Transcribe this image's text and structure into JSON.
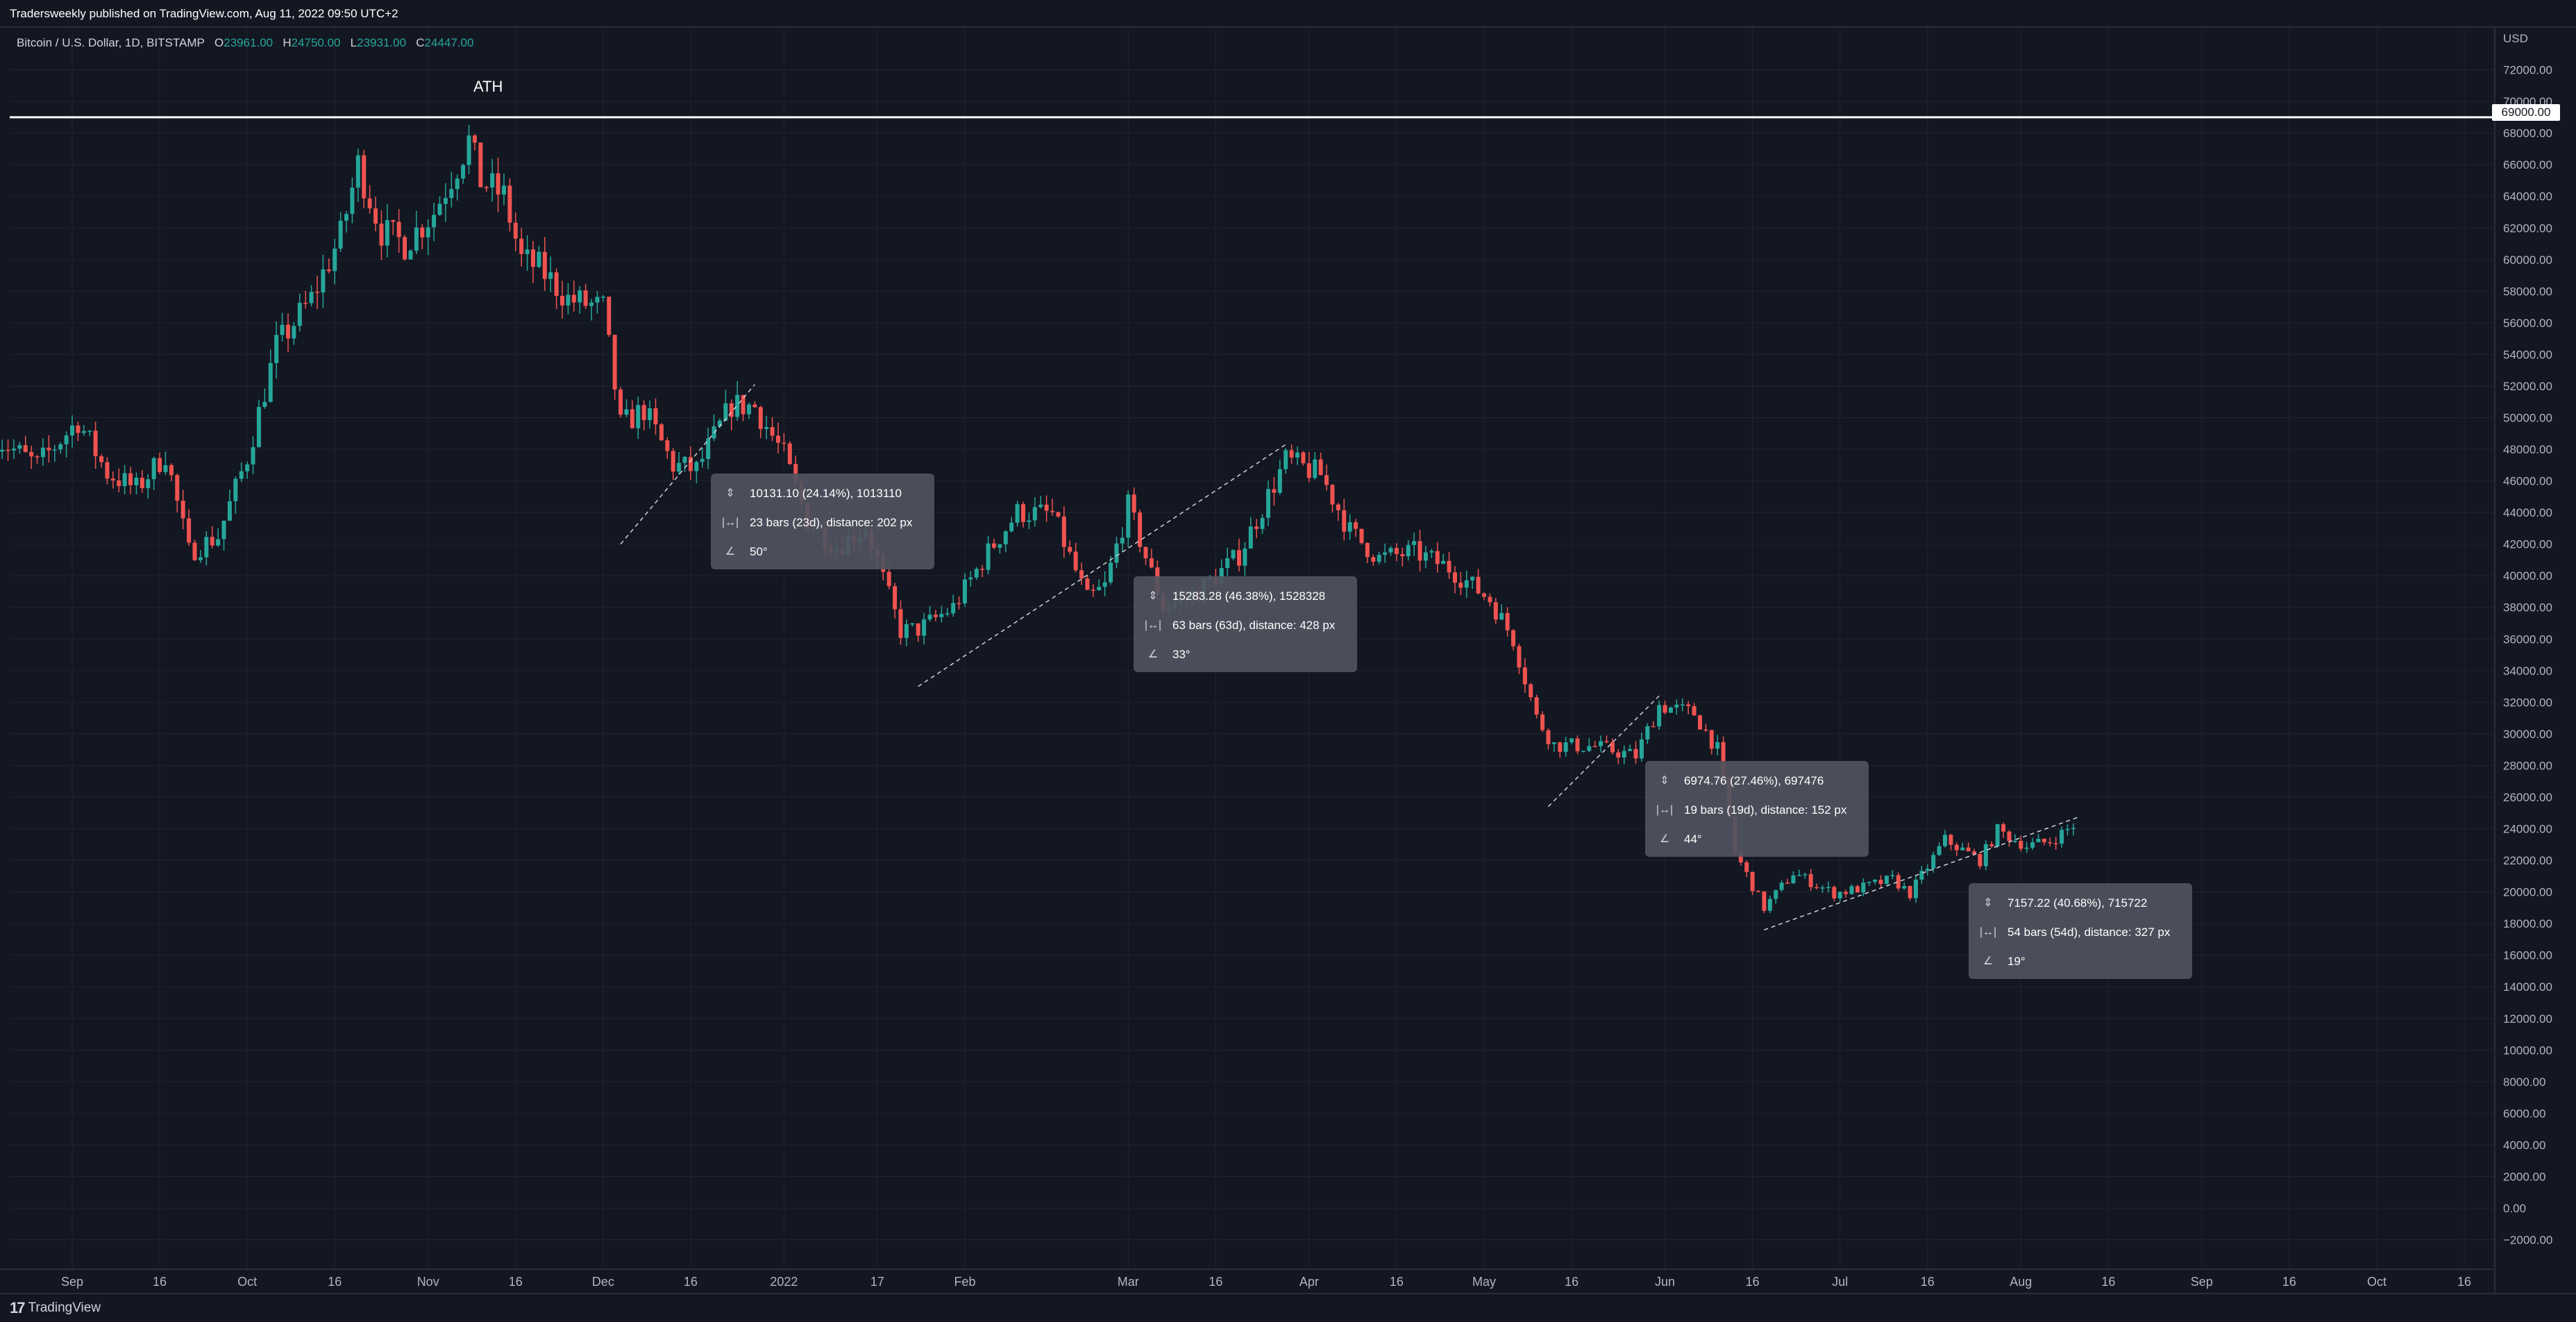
{
  "header": {
    "publisher": "Tradersweekly published on TradingView.com, Aug 11, 2022 09:50 UTC+2"
  },
  "symbol": {
    "name": "Bitcoin / U.S. Dollar, 1D, BITSTAMP",
    "open_label": "O",
    "open": "23961.00",
    "high_label": "H",
    "high": "24750.00",
    "low_label": "L",
    "low": "23931.00",
    "close_label": "C",
    "close": "24447.00"
  },
  "currency": "USD",
  "ath": {
    "label": "ATH",
    "price": "69000.00",
    "value": 69000
  },
  "colors": {
    "up": "#26a69a",
    "down": "#ef5350",
    "background": "#131722",
    "grid": "#1f2430",
    "text": "#b2b5be"
  },
  "price_axis": {
    "ticks": [
      "72000.00",
      "70000.00",
      "68000.00",
      "66000.00",
      "64000.00",
      "62000.00",
      "60000.00",
      "58000.00",
      "56000.00",
      "54000.00",
      "52000.00",
      "50000.00",
      "48000.00",
      "46000.00",
      "44000.00",
      "42000.00",
      "40000.00",
      "38000.00",
      "36000.00",
      "34000.00",
      "32000.00",
      "30000.00",
      "28000.00",
      "26000.00",
      "24000.00",
      "22000.00",
      "20000.00",
      "18000.00",
      "16000.00",
      "14000.00",
      "12000.00",
      "10000.00",
      "8000.00",
      "6000.00",
      "4000.00",
      "2000.00",
      "0.00",
      "−2000.00"
    ]
  },
  "time_axis": {
    "labels": [
      {
        "text": "Sep",
        "date": "2021-09-01"
      },
      {
        "text": "16",
        "date": "2021-09-16"
      },
      {
        "text": "Oct",
        "date": "2021-10-01"
      },
      {
        "text": "16",
        "date": "2021-10-16"
      },
      {
        "text": "Nov",
        "date": "2021-11-01"
      },
      {
        "text": "16",
        "date": "2021-11-16"
      },
      {
        "text": "Dec",
        "date": "2021-12-01"
      },
      {
        "text": "16",
        "date": "2021-12-16"
      },
      {
        "text": "2022",
        "date": "2022-01-01"
      },
      {
        "text": "17",
        "date": "2022-01-17"
      },
      {
        "text": "Feb",
        "date": "2022-02-01"
      },
      {
        "text": "Mar",
        "date": "2022-03-01"
      },
      {
        "text": "16",
        "date": "2022-03-16"
      },
      {
        "text": "Apr",
        "date": "2022-04-01"
      },
      {
        "text": "16",
        "date": "2022-04-16"
      },
      {
        "text": "May",
        "date": "2022-05-01"
      },
      {
        "text": "16",
        "date": "2022-05-16"
      },
      {
        "text": "Jun",
        "date": "2022-06-01"
      },
      {
        "text": "16",
        "date": "2022-06-16"
      },
      {
        "text": "Jul",
        "date": "2022-07-01"
      },
      {
        "text": "16",
        "date": "2022-07-16"
      },
      {
        "text": "Aug",
        "date": "2022-08-01"
      },
      {
        "text": "16",
        "date": "2022-08-16"
      },
      {
        "text": "Sep",
        "date": "2022-09-01"
      },
      {
        "text": "16",
        "date": "2022-09-16"
      },
      {
        "text": "Oct",
        "date": "2022-10-01"
      },
      {
        "text": "16",
        "date": "2022-10-16"
      }
    ]
  },
  "measurements": [
    {
      "price_change": "10131.10 (24.14%), 1013110",
      "bars": "23 bars (23d), distance: 202 px",
      "angle": "50°",
      "start": {
        "date": "2021-12-04",
        "price": 42000
      },
      "end": {
        "date": "2021-12-27",
        "price": 52100
      }
    },
    {
      "price_change": "15283.28 (46.38%), 1528328",
      "bars": "63 bars (63d), distance: 428 px",
      "angle": "33°",
      "start": {
        "date": "2022-01-24",
        "price": 33000
      },
      "end": {
        "date": "2022-03-28",
        "price": 48300
      }
    },
    {
      "price_change": "6974.76 (27.46%), 697476",
      "bars": "19 bars (19d), distance: 152 px",
      "angle": "44°",
      "start": {
        "date": "2022-05-12",
        "price": 25400
      },
      "end": {
        "date": "2022-05-31",
        "price": 32400
      }
    },
    {
      "price_change": "7157.22 (40.68%), 715722",
      "bars": "54 bars (54d), distance: 327 px",
      "angle": "19°",
      "start": {
        "date": "2022-06-18",
        "price": 17600
      },
      "end": {
        "date": "2022-08-11",
        "price": 24750
      }
    }
  ],
  "chart_data": {
    "type": "candlestick",
    "title": "Bitcoin / U.S. Dollar, 1D, BITSTAMP",
    "ylabel": "USD",
    "ylim": [
      -3000,
      74000
    ],
    "x_start": "2021-08-19",
    "x_end": "2022-08-11",
    "weekly_closes": [
      [
        "2021-08-19",
        48700
      ],
      [
        "2021-08-26",
        47000
      ],
      [
        "2021-09-02",
        49800
      ],
      [
        "2021-09-07",
        46500
      ],
      [
        "2021-09-12",
        45500
      ],
      [
        "2021-09-17",
        47700
      ],
      [
        "2021-09-21",
        41500
      ],
      [
        "2021-09-26",
        42500
      ],
      [
        "2021-10-01",
        47500
      ],
      [
        "2021-10-06",
        54500
      ],
      [
        "2021-10-12",
        57500
      ],
      [
        "2021-10-17",
        61500
      ],
      [
        "2021-10-20",
        66000
      ],
      [
        "2021-10-24",
        61800
      ],
      [
        "2021-10-28",
        61000
      ],
      [
        "2021-11-02",
        63000
      ],
      [
        "2021-11-08",
        67500
      ],
      [
        "2021-11-10",
        65000
      ],
      [
        "2021-11-14",
        64000
      ],
      [
        "2021-11-17",
        60000
      ],
      [
        "2021-11-20",
        59500
      ],
      [
        "2021-11-25",
        57500
      ],
      [
        "2021-12-01",
        56900
      ],
      [
        "2021-12-04",
        49500
      ],
      [
        "2021-12-08",
        50500
      ],
      [
        "2021-12-13",
        47000
      ],
      [
        "2021-12-17",
        46700
      ],
      [
        "2021-12-23",
        50800
      ],
      [
        "2021-12-27",
        50700
      ],
      [
        "2022-01-01",
        47600
      ],
      [
        "2022-01-05",
        43500
      ],
      [
        "2022-01-10",
        41800
      ],
      [
        "2022-01-15",
        43100
      ],
      [
        "2022-01-21",
        36500
      ],
      [
        "2022-01-24",
        36600
      ],
      [
        "2022-01-30",
        38000
      ],
      [
        "2022-02-05",
        41500
      ],
      [
        "2022-02-10",
        44000
      ],
      [
        "2022-02-16",
        43900
      ],
      [
        "2022-02-22",
        38500
      ],
      [
        "2022-02-25",
        39300
      ],
      [
        "2022-03-01",
        44400
      ],
      [
        "2022-03-07",
        38000
      ],
      [
        "2022-03-13",
        39000
      ],
      [
        "2022-03-20",
        41300
      ],
      [
        "2022-03-28",
        47300
      ],
      [
        "2022-04-03",
        46400
      ],
      [
        "2022-04-08",
        42800
      ],
      [
        "2022-04-13",
        41100
      ],
      [
        "2022-04-19",
        41500
      ],
      [
        "2022-04-25",
        40500
      ],
      [
        "2022-05-02",
        38500
      ],
      [
        "2022-05-06",
        36000
      ],
      [
        "2022-05-10",
        31000
      ],
      [
        "2022-05-13",
        29300
      ],
      [
        "2022-05-20",
        29200
      ],
      [
        "2022-05-27",
        28600
      ],
      [
        "2022-05-31",
        31800
      ],
      [
        "2022-06-06",
        31300
      ],
      [
        "2022-06-10",
        29000
      ],
      [
        "2022-06-13",
        22500
      ],
      [
        "2022-06-18",
        19000
      ],
      [
        "2022-06-23",
        21200
      ],
      [
        "2022-06-30",
        19900
      ],
      [
        "2022-07-04",
        20200
      ],
      [
        "2022-07-10",
        20800
      ],
      [
        "2022-07-13",
        19900
      ],
      [
        "2022-07-19",
        23300
      ],
      [
        "2022-07-25",
        22000
      ],
      [
        "2022-07-28",
        23900
      ],
      [
        "2022-08-02",
        22900
      ],
      [
        "2022-08-06",
        23200
      ],
      [
        "2022-08-11",
        24447
      ]
    ]
  }
}
